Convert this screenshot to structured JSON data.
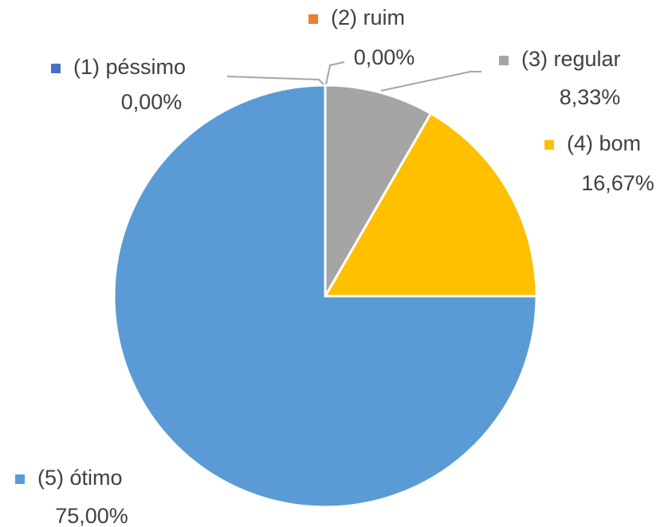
{
  "chart_data": {
    "type": "pie",
    "categories": [
      "(1) péssimo",
      "(2) ruim",
      "(3) regular",
      "(4) bom",
      "(5) ótimo"
    ],
    "values": [
      0,
      0,
      8.33,
      16.67,
      75
    ],
    "value_labels": [
      "0,00%",
      "0,00%",
      "8,33%",
      "16,67%",
      "75,00%"
    ],
    "colors": [
      "#4472c4",
      "#ed7d31",
      "#a5a5a5",
      "#ffc000",
      "#5b9bd5"
    ]
  }
}
